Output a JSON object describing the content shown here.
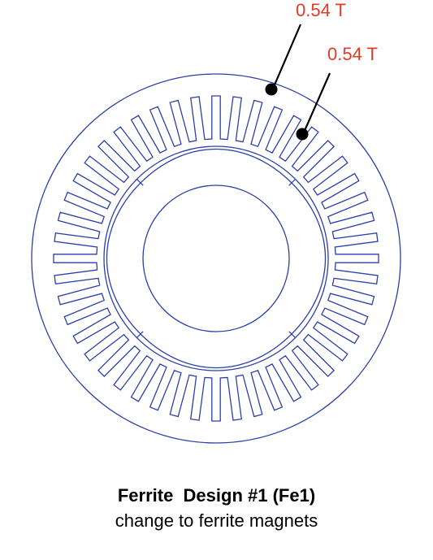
{
  "annotations": [
    {
      "text": "0.54 T"
    },
    {
      "text": "0.54 T"
    }
  ],
  "caption": {
    "title": "Ferrite  Design #1 (Fe1)",
    "subtitle": "change to ferrite magnets"
  },
  "diagram": {
    "stator_slot_count": 48,
    "rotor_pole_count": 4
  },
  "colors": {
    "outline": "#2b3fa8",
    "annotation_text": "#e23b25",
    "leader_line": "#000000",
    "caption_text": "#000000"
  }
}
